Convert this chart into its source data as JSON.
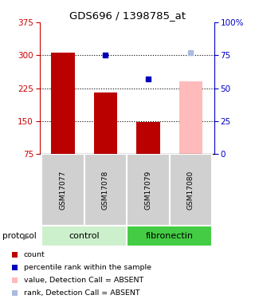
{
  "title": "GDS696 / 1398785_at",
  "samples": [
    "GSM17077",
    "GSM17078",
    "GSM17079",
    "GSM17080"
  ],
  "bar_values": [
    307,
    215,
    148,
    null
  ],
  "bar_color": "#bb0000",
  "absent_bar_values": [
    null,
    null,
    null,
    240
  ],
  "absent_bar_color": "#ffbbbb",
  "dot_values": [
    null,
    75,
    57,
    null
  ],
  "dot_color": "#0000bb",
  "absent_dot_values": [
    null,
    null,
    null,
    77
  ],
  "absent_dot_color": "#aabbdd",
  "ylim_left": [
    75,
    375
  ],
  "ylim_right": [
    0,
    100
  ],
  "yticks_left": [
    75,
    150,
    225,
    300,
    375
  ],
  "yticks_right": [
    0,
    25,
    50,
    75,
    100
  ],
  "ytick_labels_right": [
    "0",
    "25",
    "50",
    "75",
    "100%"
  ],
  "grid_values": [
    150,
    225,
    300
  ],
  "protocol_groups": [
    {
      "label": "control",
      "samples": [
        0,
        1
      ],
      "color": "#ccf0cc"
    },
    {
      "label": "fibronectin",
      "samples": [
        2,
        3
      ],
      "color": "#44cc44"
    }
  ],
  "protocol_label": "protocol",
  "legend_items": [
    {
      "color": "#bb0000",
      "label": "count"
    },
    {
      "color": "#0000bb",
      "label": "percentile rank within the sample"
    },
    {
      "color": "#ffbbbb",
      "label": "value, Detection Call = ABSENT"
    },
    {
      "color": "#aabbdd",
      "label": "rank, Detection Call = ABSENT"
    }
  ],
  "left_axis_color": "#cc0000",
  "right_axis_color": "#0000cc",
  "bar_width": 0.55
}
